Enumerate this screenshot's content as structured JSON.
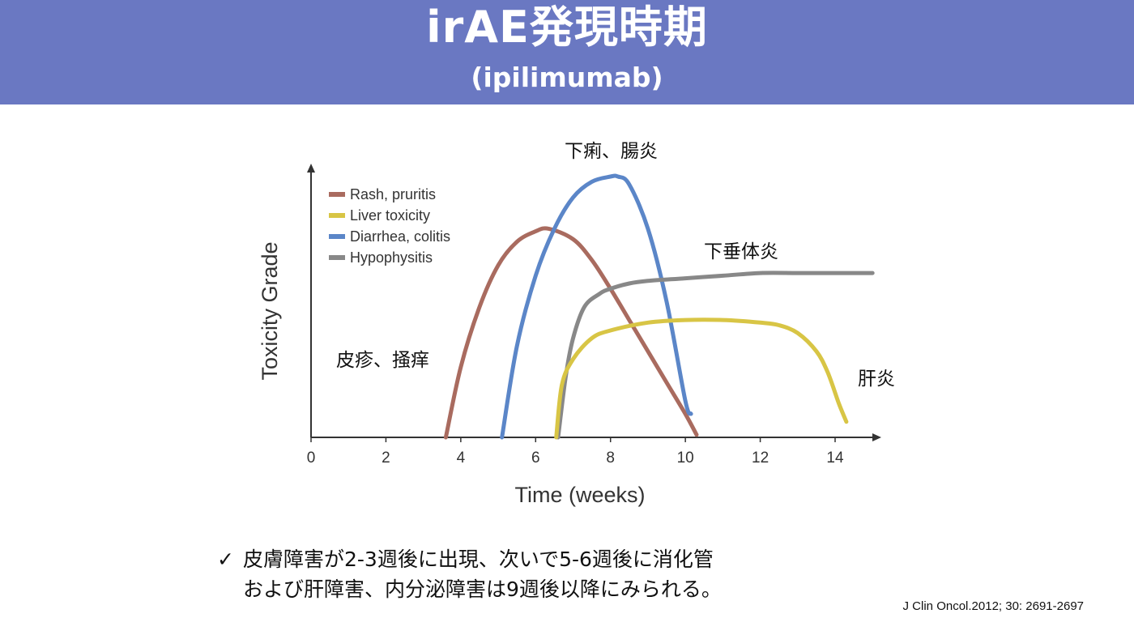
{
  "header": {
    "title": "irAE発現時期",
    "subtitle": "(ipilimumab)"
  },
  "colors": {
    "header_bg": "#6a78c2",
    "rash": "#a96b5f",
    "liver": "#d8c545",
    "diarrhea": "#5b86c8",
    "hypophysitis": "#888888"
  },
  "chart_data": {
    "type": "line",
    "xlabel": "Time (weeks)",
    "ylabel": "Toxicity Grade",
    "xlim": [
      0,
      15
    ],
    "ylim": [
      0,
      1
    ],
    "x_ticks": [
      0,
      2,
      4,
      6,
      8,
      10,
      12,
      14
    ],
    "legend_position": "top-left",
    "series": [
      {
        "name": "Rash, pruritis",
        "annotation": "皮疹、掻痒",
        "color": "#a96b5f",
        "x": [
          3.6,
          4.0,
          4.5,
          5.0,
          5.5,
          6.0,
          6.35,
          7.0,
          7.5,
          8.0,
          8.5,
          9.0,
          9.5,
          10.0,
          10.3
        ],
        "y": [
          0.0,
          0.27,
          0.5,
          0.66,
          0.75,
          0.79,
          0.8,
          0.76,
          0.68,
          0.57,
          0.45,
          0.33,
          0.21,
          0.09,
          0.01
        ]
      },
      {
        "name": "Liver toxicity",
        "annotation": "肝炎",
        "color": "#d8c545",
        "x": [
          6.55,
          6.7,
          7.0,
          7.5,
          8.0,
          9.0,
          10.0,
          11.0,
          12.0,
          12.5,
          13.0,
          13.5,
          13.8,
          14.1,
          14.3
        ],
        "y": [
          0.0,
          0.2,
          0.3,
          0.38,
          0.41,
          0.44,
          0.45,
          0.45,
          0.44,
          0.43,
          0.4,
          0.33,
          0.25,
          0.13,
          0.06
        ]
      },
      {
        "name": "Diarrhea, colitis",
        "annotation": "下痢、腸炎",
        "color": "#5b86c8",
        "x": [
          5.1,
          5.5,
          6.0,
          6.5,
          7.0,
          7.5,
          8.0,
          8.2,
          8.5,
          9.0,
          9.5,
          10.0,
          10.15
        ],
        "y": [
          0.0,
          0.35,
          0.62,
          0.8,
          0.92,
          0.98,
          1.0,
          1.0,
          0.97,
          0.8,
          0.52,
          0.14,
          0.09
        ]
      },
      {
        "name": "Hypophysitis",
        "annotation": "下垂体炎",
        "color": "#888888",
        "x": [
          6.6,
          6.8,
          7.0,
          7.3,
          7.7,
          8.0,
          8.5,
          9.0,
          10.0,
          11.0,
          12.0,
          13.0,
          14.0,
          15.0
        ],
        "y": [
          0.0,
          0.23,
          0.38,
          0.5,
          0.55,
          0.57,
          0.59,
          0.6,
          0.61,
          0.62,
          0.63,
          0.63,
          0.63,
          0.63
        ]
      }
    ]
  },
  "note": {
    "check": "✓",
    "line1": "皮膚障害が2-3週後に出現、次いで5-6週後に消化管",
    "line2": "および肝障害、内分泌障害は9週後以降にみられる。"
  },
  "citation": "J Clin Oncol.2012; 30: 2691-2697"
}
